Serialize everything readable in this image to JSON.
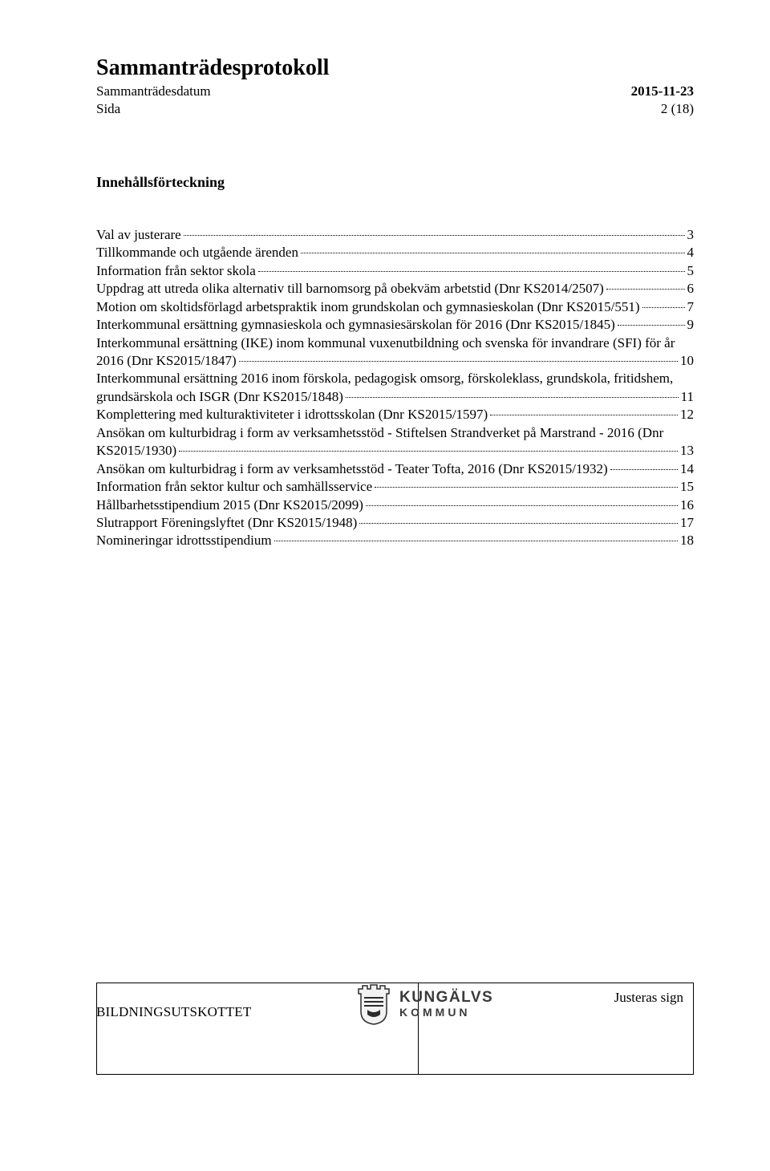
{
  "colors": {
    "text": "#000000",
    "background": "#ffffff",
    "crest_text": "#3a3a3a",
    "crest_outline": "#2c2c2c",
    "crest_fill": "#f2f2f2"
  },
  "fonts": {
    "body_family": "Garamond, 'Times New Roman', serif",
    "body_size_pt": 12,
    "title_size_pt": 20,
    "crest_family": "Arial, Helvetica, sans-serif"
  },
  "header": {
    "doc_title": "Sammanträdesprotokoll",
    "left_label_1": "Sammanträdesdatum",
    "left_label_2": "Sida",
    "date": "2015-11-23",
    "page_indicator": "2 (18)"
  },
  "toc_heading": "Innehållsförteckning",
  "toc": [
    {
      "label": "Val av justerare",
      "page": "3",
      "wrap": false
    },
    {
      "label": "Tillkommande och utgående ärenden",
      "page": "4",
      "wrap": false
    },
    {
      "label": "Information från sektor skola",
      "page": "5",
      "wrap": false
    },
    {
      "label": "Uppdrag att utreda olika alternativ till barnomsorg på obekväm arbetstid (Dnr KS2014/2507)",
      "page": "6",
      "wrap": false
    },
    {
      "label": "Motion om skoltidsförlagd arbetspraktik inom grundskolan och gymnasieskolan (Dnr KS2015/551)",
      "page": "7",
      "wrap": false
    },
    {
      "label": "Interkommunal ersättning gymnasieskola och gymnasiesärskolan för 2016 (Dnr KS2015/1845)",
      "page": "9",
      "wrap": false
    },
    {
      "label_lines": [
        "Interkommunal ersättning (IKE) inom kommunal vuxenutbildning och svenska för invandrare (SFI) för år",
        "2016 (Dnr KS2015/1847)"
      ],
      "page": "10",
      "wrap": true
    },
    {
      "label_lines": [
        "Interkommunal ersättning 2016 inom förskola, pedagogisk omsorg, förskoleklass, grundskola, fritidshem,",
        "grundsärskola och ISGR (Dnr KS2015/1848)"
      ],
      "page": "11",
      "wrap": true
    },
    {
      "label": "Komplettering med kulturaktiviteter i idrottsskolan (Dnr KS2015/1597)",
      "page": "12",
      "wrap": false
    },
    {
      "label_lines": [
        "Ansökan om kulturbidrag i form av verksamhetsstöd - Stiftelsen Strandverket på Marstrand - 2016 (Dnr",
        "KS2015/1930)"
      ],
      "page": "13",
      "wrap": true
    },
    {
      "label": "Ansökan om kulturbidrag i form av verksamhetsstöd - Teater Tofta, 2016 (Dnr KS2015/1932)",
      "page": "14",
      "wrap": false
    },
    {
      "label": "Information från sektor kultur och samhällsservice",
      "page": "15",
      "wrap": false
    },
    {
      "label": "Hållbarhetsstipendium 2015 (Dnr KS2015/2099)",
      "page": "16",
      "wrap": false
    },
    {
      "label": "Slutrapport Föreningslyftet (Dnr KS2015/1948)",
      "page": "17",
      "wrap": false
    },
    {
      "label": "Nomineringar idrottsstipendium",
      "page": "18",
      "wrap": false
    }
  ],
  "footer": {
    "committee": "BILDNINGSUTSKOTTET",
    "justeras": "Justeras sign",
    "crest_line1": "KUNGÄLVS",
    "crest_line2": "KOMMUN"
  }
}
